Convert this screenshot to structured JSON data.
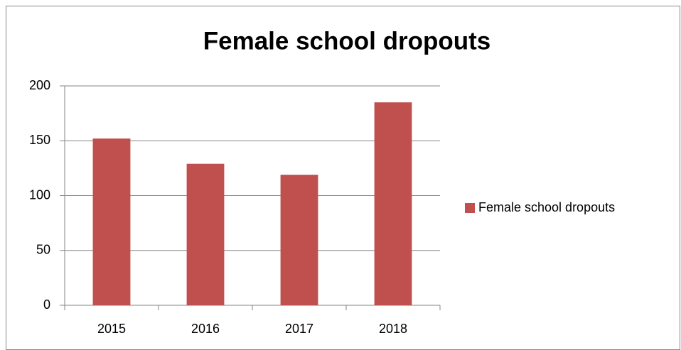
{
  "chart_data": {
    "type": "bar",
    "title": "Female school dropouts",
    "categories": [
      "2015",
      "2016",
      "2017",
      "2018"
    ],
    "series": [
      {
        "name": "Female school dropouts",
        "color": "#c0504d",
        "values": [
          152,
          129,
          119,
          185
        ]
      }
    ],
    "ylim": [
      0,
      200
    ],
    "yticks": [
      0,
      50,
      100,
      150,
      200
    ],
    "grid": true,
    "legend": "right"
  }
}
